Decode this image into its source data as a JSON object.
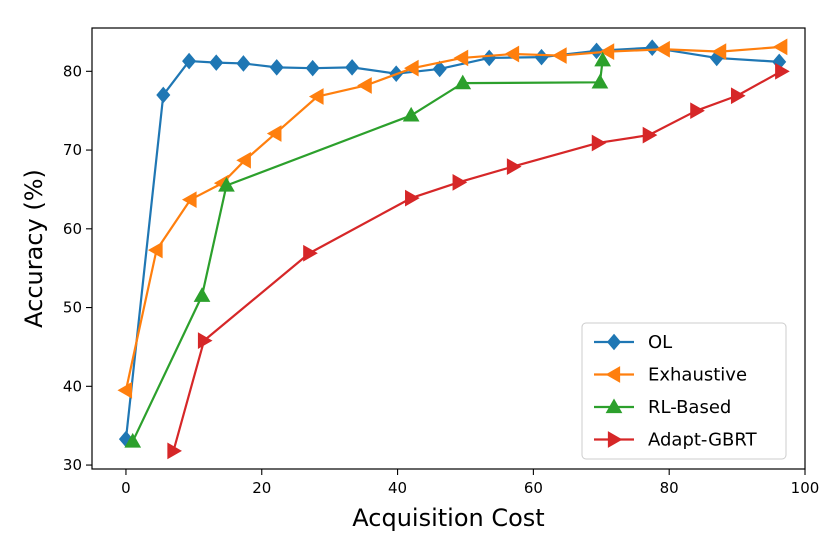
{
  "chart_data": {
    "type": "line",
    "title": "",
    "xlabel": "Acquisition Cost",
    "ylabel": "Accuracy (%)",
    "xlim": [
      -5,
      100
    ],
    "ylim": [
      29.5,
      85.5
    ],
    "xticks": [
      0,
      20,
      40,
      60,
      80,
      100
    ],
    "yticks": [
      30,
      40,
      50,
      60,
      70,
      80
    ],
    "grid": false,
    "legend_position": "bottom-right",
    "series": [
      {
        "name": "OL",
        "color": "#1f77b4",
        "marker": "diamond",
        "x": [
          0,
          5.5,
          9.3,
          13.3,
          17.3,
          22.2,
          27.5,
          33.3,
          39.8,
          46.2,
          53.5,
          61.2,
          69.3,
          77.5,
          87.0,
          96.2
        ],
        "y": [
          33.3,
          77.0,
          81.3,
          81.1,
          81.0,
          80.5,
          80.4,
          80.5,
          79.7,
          80.3,
          81.7,
          81.8,
          82.6,
          83.0,
          81.7,
          81.2
        ]
      },
      {
        "name": "Exhaustive",
        "color": "#ff7f0e",
        "marker": "triangle-left",
        "x": [
          0,
          4.5,
          9.5,
          14.2,
          17.5,
          22.0,
          28.2,
          35.3,
          42.2,
          49.5,
          57.0,
          64.0,
          71.0,
          79.2,
          87.5,
          96.5
        ],
        "y": [
          39.5,
          57.3,
          63.7,
          65.8,
          68.7,
          72.1,
          76.8,
          78.2,
          80.4,
          81.7,
          82.2,
          82.0,
          82.5,
          82.8,
          82.5,
          83.1
        ]
      },
      {
        "name": "RL-Based",
        "color": "#2ca02c",
        "marker": "triangle-up",
        "x": [
          1.0,
          11.2,
          14.8,
          42.0,
          49.6,
          69.8,
          70.2
        ],
        "y": [
          33.0,
          51.5,
          65.5,
          74.4,
          78.5,
          78.6,
          81.4
        ]
      },
      {
        "name": "Adapt-GBRT",
        "color": "#d62728",
        "marker": "triangle-right",
        "x": [
          7.0,
          11.5,
          27.0,
          42.0,
          49.0,
          57.0,
          69.5,
          77.0,
          84.0,
          90.0,
          96.5
        ],
        "y": [
          31.8,
          45.8,
          56.9,
          63.9,
          65.9,
          67.9,
          70.9,
          71.9,
          75.0,
          76.9,
          80.0
        ]
      }
    ]
  }
}
